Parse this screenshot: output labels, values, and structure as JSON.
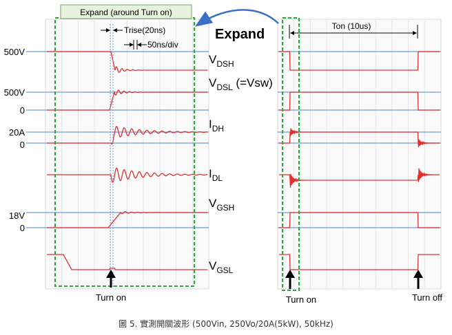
{
  "figure": {
    "caption": "圖 5. 實測開關波形 (500Vin, 250Vo/20A(5kW), 50kHz)",
    "expand_box_label": "Expand (around Turn on)",
    "expand_label": "Expand",
    "trise_label": "Trise(20ns)",
    "timebase_label": "50ns/div",
    "ton_label": "Ton (10us)",
    "turn_on_left": "Turn on",
    "turn_on_right": "Turn on",
    "turn_off_right": "Turn off",
    "colors": {
      "trace": "#e03030",
      "reference": "#6f9ad8",
      "highlight": "#22aa33",
      "arrow": "#3a6fc4",
      "grid": "#e4e4e4"
    }
  },
  "chart_data": {
    "type": "line",
    "panels": [
      "expanded turn-on (50ns/div)",
      "full switching period"
    ],
    "series": [
      {
        "name": "VDSH",
        "name_main": "V",
        "name_sub": "DSH",
        "name_suffix": "",
        "level_labels": [
          "500V"
        ],
        "shape": "step-down"
      },
      {
        "name": "VDSL (=Vsw)",
        "name_main": "V",
        "name_sub": "DSL",
        "name_suffix": " (=Vsw)",
        "level_labels": [
          "500V",
          "0"
        ],
        "shape": "step-up"
      },
      {
        "name": "IDH",
        "name_main": "I",
        "name_sub": "DH",
        "name_suffix": "",
        "level_labels": [
          "20A",
          "0"
        ],
        "shape": "current-rise-ringing"
      },
      {
        "name": "IDL",
        "name_main": "I",
        "name_sub": "DL",
        "name_suffix": "",
        "level_labels": [],
        "shape": "current-dip-ringing"
      },
      {
        "name": "VGSH",
        "name_main": "V",
        "name_sub": "GSH",
        "name_suffix": "",
        "level_labels": [
          "18V",
          "0"
        ],
        "shape": "gate-rise"
      },
      {
        "name": "VGSL",
        "name_main": "V",
        "name_sub": "GSL",
        "name_suffix": "",
        "level_labels": [],
        "shape": "gate-fall"
      }
    ],
    "timebase_expanded": "50ns/div",
    "rise_time": "20ns",
    "on_time": "10us",
    "events": [
      "Turn on",
      "Turn off"
    ]
  }
}
